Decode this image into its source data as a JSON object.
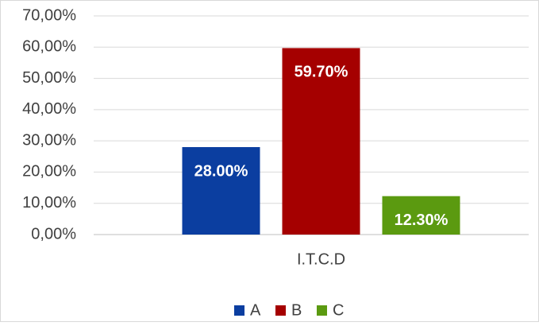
{
  "chart_data": {
    "type": "bar",
    "categories": [
      "I.T.C.D"
    ],
    "series": [
      {
        "name": "A",
        "color": "#0b3ea0",
        "values": [
          28
        ],
        "value_labels": [
          "28.00%"
        ]
      },
      {
        "name": "B",
        "color": "#a50000",
        "values": [
          59.7
        ],
        "value_labels": [
          "59.70%"
        ]
      },
      {
        "name": "C",
        "color": "#5b9a10",
        "values": [
          12.3
        ],
        "value_labels": [
          "12.30%"
        ]
      }
    ],
    "ylim": [
      0,
      70
    ],
    "yticks": [
      {
        "value": 0,
        "label": "0,00%"
      },
      {
        "value": 10,
        "label": "10,00%"
      },
      {
        "value": 20,
        "label": "20,00%"
      },
      {
        "value": 30,
        "label": "30,00%"
      },
      {
        "value": 40,
        "label": "40,00%"
      },
      {
        "value": 50,
        "label": "50,00%"
      },
      {
        "value": 60,
        "label": "60,00%"
      },
      {
        "value": 70,
        "label": "70,00%"
      }
    ],
    "grid": true,
    "legend": "bottom"
  }
}
